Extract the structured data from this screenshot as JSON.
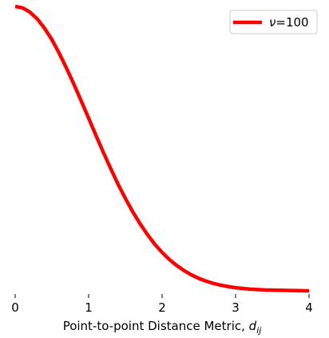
{
  "chart_data": {
    "type": "line",
    "title": "",
    "xlabel": "Point-to-point Distance Metric, ",
    "xlabel_math": {
      "base": "d",
      "subscript": "ij"
    },
    "ylabel": "",
    "xlim": [
      0,
      4
    ],
    "ylim": [
      0,
      1
    ],
    "x_ticks": [
      0,
      1,
      2,
      3,
      4
    ],
    "x_tick_labels": [
      "0",
      "1",
      "2",
      "3",
      "4"
    ],
    "y_ticks_visible": false,
    "grid": false,
    "legend_position": "top-right",
    "series": [
      {
        "name": "ν=100",
        "legend_symbol": "ν",
        "legend_value": "=100",
        "color": "#ff0000",
        "x": [
          0,
          0.1,
          0.2,
          0.3,
          0.4,
          0.5,
          0.6,
          0.7,
          0.8,
          0.9,
          1.0,
          1.1,
          1.2,
          1.3,
          1.4,
          1.5,
          1.6,
          1.7,
          1.8,
          1.9,
          2.0,
          2.1,
          2.2,
          2.3,
          2.4,
          2.5,
          2.6,
          2.7,
          2.8,
          2.9,
          3.0,
          3.2,
          3.4,
          3.6,
          3.8,
          4.0
        ],
        "y": [
          1.0,
          0.995,
          0.98,
          0.956,
          0.923,
          0.883,
          0.835,
          0.782,
          0.726,
          0.667,
          0.607,
          0.546,
          0.487,
          0.43,
          0.375,
          0.325,
          0.278,
          0.236,
          0.198,
          0.164,
          0.135,
          0.11,
          0.089,
          0.071,
          0.056,
          0.044,
          0.034,
          0.026,
          0.02,
          0.015,
          0.011,
          0.006,
          0.003,
          0.002,
          0.001,
          0.0
        ]
      }
    ]
  }
}
